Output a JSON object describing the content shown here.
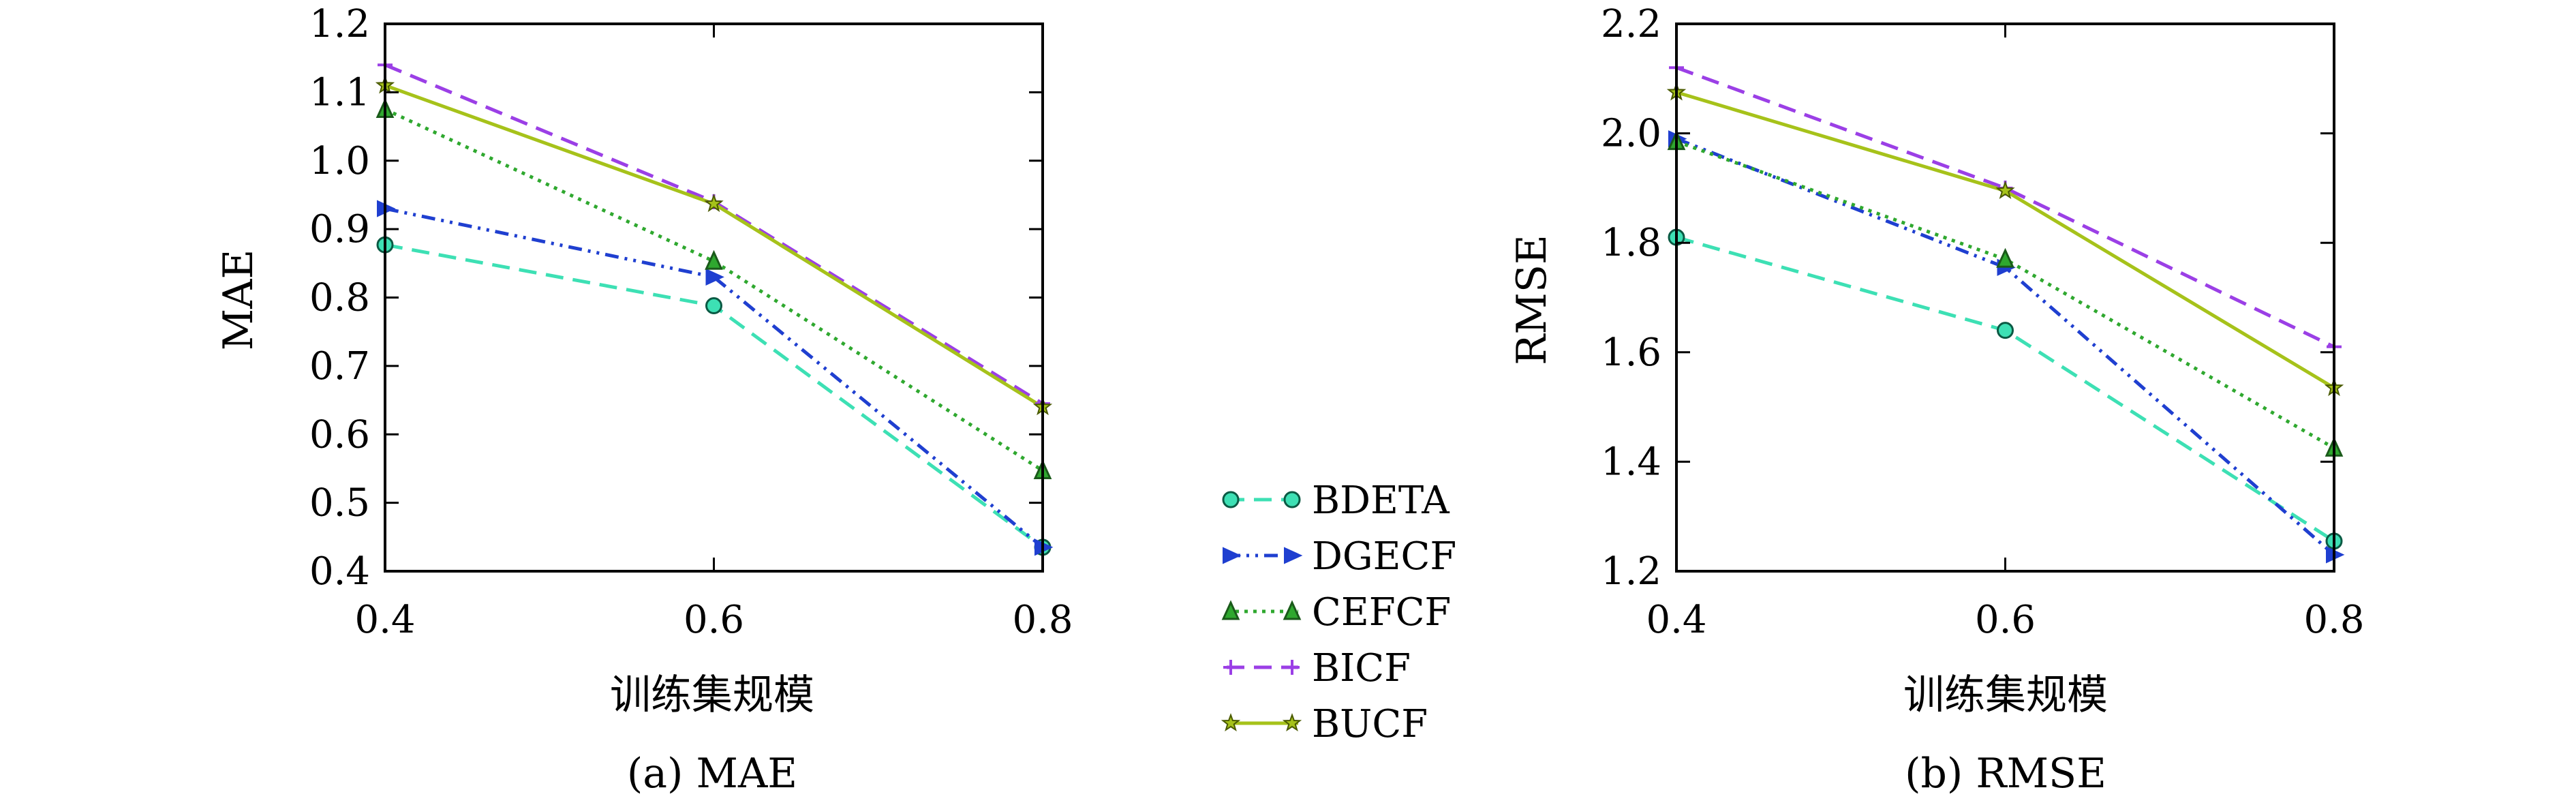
{
  "chart_data": [
    {
      "type": "line",
      "caption": "(a) MAE",
      "xlabel": "训练集规模",
      "ylabel": "MAE",
      "x": [
        0.4,
        0.6,
        0.8
      ],
      "xticks": [
        "0.4",
        "0.6",
        "0.8"
      ],
      "xlim": [
        0.4,
        0.8
      ],
      "ylim": [
        0.4,
        1.2
      ],
      "yticks": [
        "0.4",
        "0.5",
        "0.6",
        "0.7",
        "0.8",
        "0.9",
        "1.0",
        "1.1",
        "1.2"
      ],
      "grid": false,
      "series": [
        {
          "name": "BDETA",
          "values": [
            0.877,
            0.788,
            0.435
          ]
        },
        {
          "name": "DGECF",
          "values": [
            0.93,
            0.83,
            0.435
          ]
        },
        {
          "name": "CEFCF",
          "values": [
            1.075,
            0.853,
            0.547
          ]
        },
        {
          "name": "BICF",
          "values": [
            1.14,
            0.94,
            0.645
          ]
        },
        {
          "name": "BUCF",
          "values": [
            1.11,
            0.937,
            0.64
          ]
        }
      ]
    },
    {
      "type": "line",
      "caption": "(b) RMSE",
      "xlabel": "训练集规模",
      "ylabel": "RMSE",
      "x": [
        0.4,
        0.6,
        0.8
      ],
      "xticks": [
        "0.4",
        "0.6",
        "0.8"
      ],
      "xlim": [
        0.4,
        0.8
      ],
      "ylim": [
        1.2,
        2.2
      ],
      "yticks": [
        "1.2",
        "1.4",
        "1.6",
        "1.8",
        "2.0",
        "2.2"
      ],
      "grid": false,
      "series": [
        {
          "name": "BDETA",
          "values": [
            1.81,
            1.64,
            1.255
          ]
        },
        {
          "name": "DGECF",
          "values": [
            1.99,
            1.755,
            1.23
          ]
        },
        {
          "name": "CEFCF",
          "values": [
            1.985,
            1.77,
            1.425
          ]
        },
        {
          "name": "BICF",
          "values": [
            2.12,
            1.9,
            1.61
          ]
        },
        {
          "name": "BUCF",
          "values": [
            2.075,
            1.895,
            1.535
          ]
        }
      ]
    }
  ],
  "legend": {
    "placement": "center",
    "items": [
      {
        "label": "BDETA",
        "color": "#3de0b4",
        "dash": "dashed",
        "marker": "circle"
      },
      {
        "label": "DGECF",
        "color": "#1f3fd0",
        "dash": "dash-dot-dot",
        "marker": "triangle-right"
      },
      {
        "label": "CEFCF",
        "color": "#2fa82f",
        "dash": "dotted",
        "marker": "triangle-up"
      },
      {
        "label": "BICF",
        "color": "#9b3fe6",
        "dash": "dashed",
        "marker": "plus"
      },
      {
        "label": "BUCF",
        "color": "#a6c21a",
        "dash": "solid",
        "marker": "star"
      }
    ]
  }
}
